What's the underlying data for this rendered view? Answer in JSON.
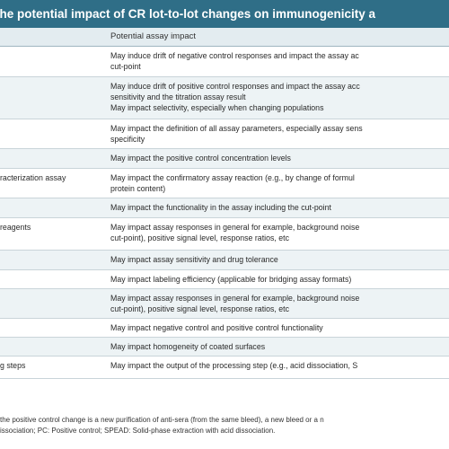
{
  "table": {
    "title": "the potential impact of CR lot-to-lot changes on immunogenicity a",
    "header": {
      "col2": "Potential assay impact"
    },
    "rows": [
      {
        "c1": [],
        "c2": [
          "May induce drift of negative control responses and impact the assay ac",
          "cut-point"
        ]
      },
      {
        "c1": [],
        "c2": [
          "May induce drift of positive control responses and impact the assay acc",
          "sensitivity and the titration assay result",
          "May impact selectivity, especially when changing populations"
        ]
      },
      {
        "c1": [],
        "c2": [
          "May impact the definition of all assay parameters, especially assay sens",
          "specificity"
        ]
      },
      {
        "c1": [],
        "c2": [
          "May impact the positive control concentration levels"
        ]
      },
      {
        "c1": [
          "racterization assay"
        ],
        "c2": [
          "May impact the confirmatory assay reaction (e.g., by change of formul",
          "protein content)"
        ]
      },
      {
        "c1": [],
        "c2": [
          "May impact the functionality in the assay including the cut-point"
        ]
      },
      {
        "c1": [
          "reagents"
        ],
        "c2": [
          "May impact assay responses in general for example, background noise",
          "cut-point), positive signal level, response ratios, etc"
        ]
      },
      {
        "c1": [],
        "c2": [
          "May impact assay sensitivity and drug tolerance"
        ]
      },
      {
        "c1": [],
        "c2": [
          "May impact labeling efficiency (applicable for bridging assay formats)"
        ]
      },
      {
        "c1": [],
        "c2": [
          "May impact assay responses in general for example, background noise",
          "cut-point), positive signal level, response ratios, etc"
        ]
      },
      {
        "c1": [],
        "c2": [
          "May impact negative control and positive control functionality"
        ]
      },
      {
        "c1": [],
        "c2": [
          "May impact homogeneity of coated surfaces"
        ]
      },
      {
        "c1": [
          "g steps"
        ],
        "c2": [
          "May impact the output of the processing step (e.g., acid dissociation, S"
        ]
      }
    ],
    "footnote": [
      "the positive control change is a new purification of anti-sera (from the same bleed), a new bleed or a n",
      "issociation; PC: Positive control; SPEAD: Solid-phase extraction with acid dissociation."
    ]
  }
}
